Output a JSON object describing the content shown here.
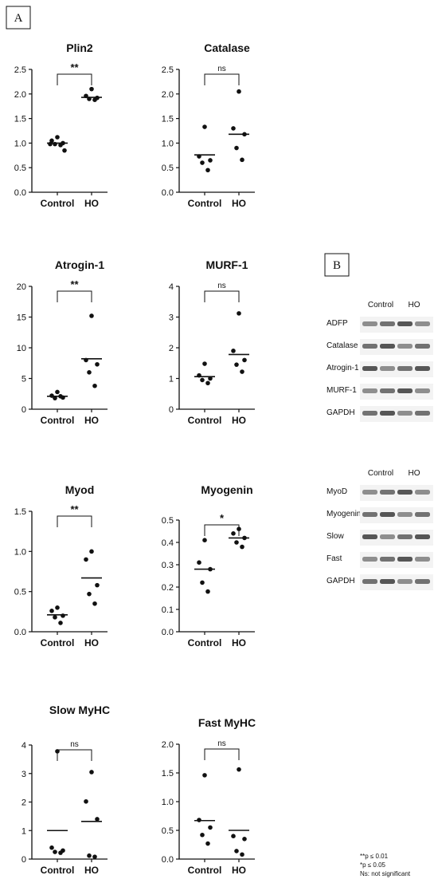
{
  "panel_a_label": "A",
  "panel_b_label": "B",
  "chart_data": [
    {
      "type": "scatter",
      "title": "Plin2",
      "categories": [
        "Control",
        "HO"
      ],
      "ylim": [
        0,
        2.5
      ],
      "yticks": [
        "0.0",
        "0.5",
        "1.0",
        "1.5",
        "2.0",
        "2.5"
      ],
      "significance": "**",
      "series": [
        {
          "values": [
            1.12,
            1.05,
            1.0,
            0.98,
            0.96,
            0.98,
            0.85
          ],
          "mean": 1.0
        },
        {
          "values": [
            2.1,
            1.96,
            1.92,
            1.9,
            1.88
          ],
          "mean": 1.93
        }
      ]
    },
    {
      "type": "scatter",
      "title": "Catalase",
      "categories": [
        "Control",
        "HO"
      ],
      "ylim": [
        0,
        2.5
      ],
      "yticks": [
        "0.0",
        "0.5",
        "1.0",
        "1.5",
        "2.0",
        "2.5"
      ],
      "significance": "ns",
      "series": [
        {
          "values": [
            1.33,
            0.73,
            0.65,
            0.6,
            0.45
          ],
          "mean": 0.76
        },
        {
          "values": [
            2.05,
            1.3,
            1.18,
            0.9,
            0.66
          ],
          "mean": 1.18
        }
      ]
    },
    {
      "type": "scatter",
      "title": "Atrogin-1",
      "categories": [
        "Control",
        "HO"
      ],
      "ylim": [
        0,
        20
      ],
      "yticks": [
        "0",
        "5",
        "10",
        "15",
        "20"
      ],
      "significance": "**",
      "series": [
        {
          "values": [
            2.8,
            2.2,
            1.9,
            1.8,
            2.1
          ],
          "mean": 2.1
        },
        {
          "values": [
            15.2,
            8.0,
            7.3,
            6.0,
            3.8
          ],
          "mean": 8.2
        }
      ]
    },
    {
      "type": "scatter",
      "title": "MURF-1",
      "categories": [
        "Control",
        "HO"
      ],
      "ylim": [
        0,
        4
      ],
      "yticks": [
        "0",
        "1",
        "2",
        "3",
        "4"
      ],
      "significance": "ns",
      "series": [
        {
          "values": [
            1.48,
            1.1,
            1.0,
            0.95,
            0.85
          ],
          "mean": 1.06
        },
        {
          "values": [
            3.12,
            1.9,
            1.6,
            1.45,
            1.22
          ],
          "mean": 1.78
        }
      ]
    },
    {
      "type": "scatter",
      "title": "Myod",
      "categories": [
        "Control",
        "HO"
      ],
      "ylim": [
        0,
        1.5
      ],
      "yticks": [
        "0.0",
        "0.5",
        "1.0",
        "1.5"
      ],
      "significance": "**",
      "series": [
        {
          "values": [
            0.3,
            0.26,
            0.2,
            0.18,
            0.11
          ],
          "mean": 0.21
        },
        {
          "values": [
            1.0,
            0.9,
            0.58,
            0.47,
            0.35
          ],
          "mean": 0.67
        }
      ]
    },
    {
      "type": "scatter",
      "title": "Myogenin",
      "categories": [
        "Control",
        "HO"
      ],
      "ylim": [
        0,
        0.5
      ],
      "yticks": [
        "0.0",
        "0.1",
        "0.2",
        "0.3",
        "0.4",
        "0.5"
      ],
      "significance": "*",
      "series": [
        {
          "values": [
            0.41,
            0.31,
            0.28,
            0.22,
            0.18
          ],
          "mean": 0.28
        },
        {
          "values": [
            0.46,
            0.44,
            0.42,
            0.4,
            0.38
          ],
          "mean": 0.42
        }
      ]
    },
    {
      "type": "scatter",
      "title": "Slow MyHC",
      "categories": [
        "Control",
        "HO"
      ],
      "ylim": [
        0,
        4
      ],
      "yticks": [
        "0",
        "1",
        "2",
        "3",
        "4"
      ],
      "significance": "ns",
      "series": [
        {
          "values": [
            3.78,
            0.4,
            0.3,
            0.25,
            0.22
          ],
          "mean": 1.0
        },
        {
          "values": [
            3.05,
            2.02,
            1.4,
            0.12,
            0.08
          ],
          "mean": 1.32
        }
      ]
    },
    {
      "type": "scatter",
      "title": "Fast MyHC",
      "categories": [
        "Control",
        "HO"
      ],
      "ylim": [
        0,
        2.0
      ],
      "yticks": [
        "0.0",
        "0.5",
        "1.0",
        "1.5",
        "2.0"
      ],
      "significance": "ns",
      "series": [
        {
          "values": [
            1.46,
            0.68,
            0.55,
            0.42,
            0.27
          ],
          "mean": 0.67
        },
        {
          "values": [
            1.56,
            0.4,
            0.35,
            0.14,
            0.08
          ],
          "mean": 0.5
        }
      ]
    }
  ],
  "blot_top": {
    "group_labels": [
      "Control",
      "HO"
    ],
    "rows": [
      "ADFP",
      "Catalase",
      "Atrogin-1",
      "MURF-1",
      "GAPDH"
    ]
  },
  "blot_bottom": {
    "group_labels": [
      "Control",
      "HO"
    ],
    "rows": [
      "MyoD",
      "Myogenin",
      "Slow",
      "Fast",
      "GAPDH"
    ]
  },
  "footnote": [
    "**p ≤ 0.01",
    "*p ≤ 0.05",
    "Ns: not significant"
  ]
}
